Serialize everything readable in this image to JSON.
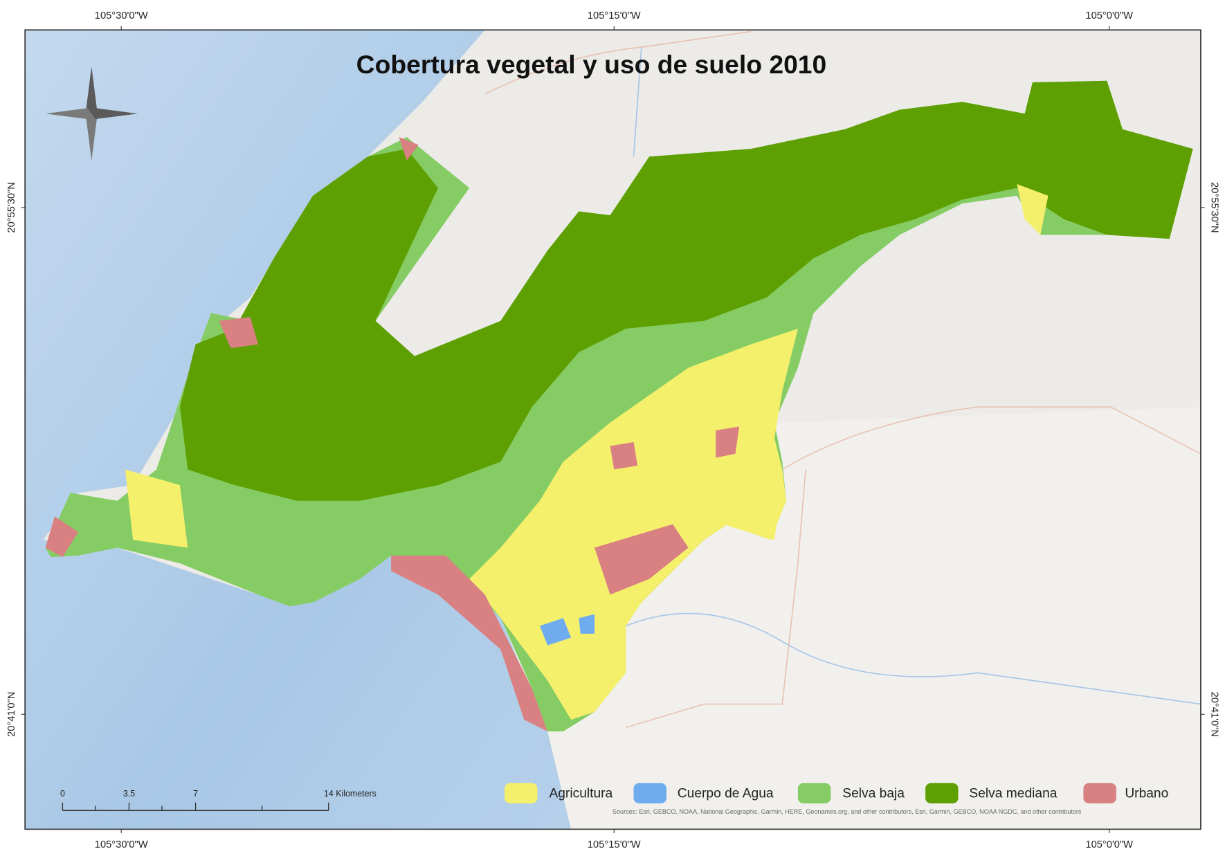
{
  "title": "Cobertura vegetal y uso de suelo 2010",
  "coordinates": {
    "top": [
      "105°30'0\"W",
      "105°15'0\"W",
      "105°0'0\"W"
    ],
    "bottom": [
      "105°30'0\"W",
      "105°15'0\"W",
      "105°0'0\"W"
    ],
    "left": [
      "20°55'30\"N",
      "20°41'0\"N"
    ],
    "right": [
      "20°55'30\"N",
      "20°41'0\"N"
    ]
  },
  "legend": [
    {
      "label": "Agricultura",
      "color": "#f4f06c"
    },
    {
      "label": "Cuerpo de Agua",
      "color": "#6eacef"
    },
    {
      "label": "Selva baja",
      "color": "#86cc64"
    },
    {
      "label": "Selva mediana",
      "color": "#5e9f02"
    },
    {
      "label": "Urbano",
      "color": "#d98082"
    }
  ],
  "scale_bar": {
    "labels": [
      "0",
      "3.5",
      "7",
      "14 Kilometers"
    ]
  },
  "sources": "Sources: Esri, GEBCO, NOAA, National Geographic, Garmin, HERE, Geonames.org, and other contributors, Esri, Garmin, GEBCO, NOAA NGDC, and other contributors"
}
